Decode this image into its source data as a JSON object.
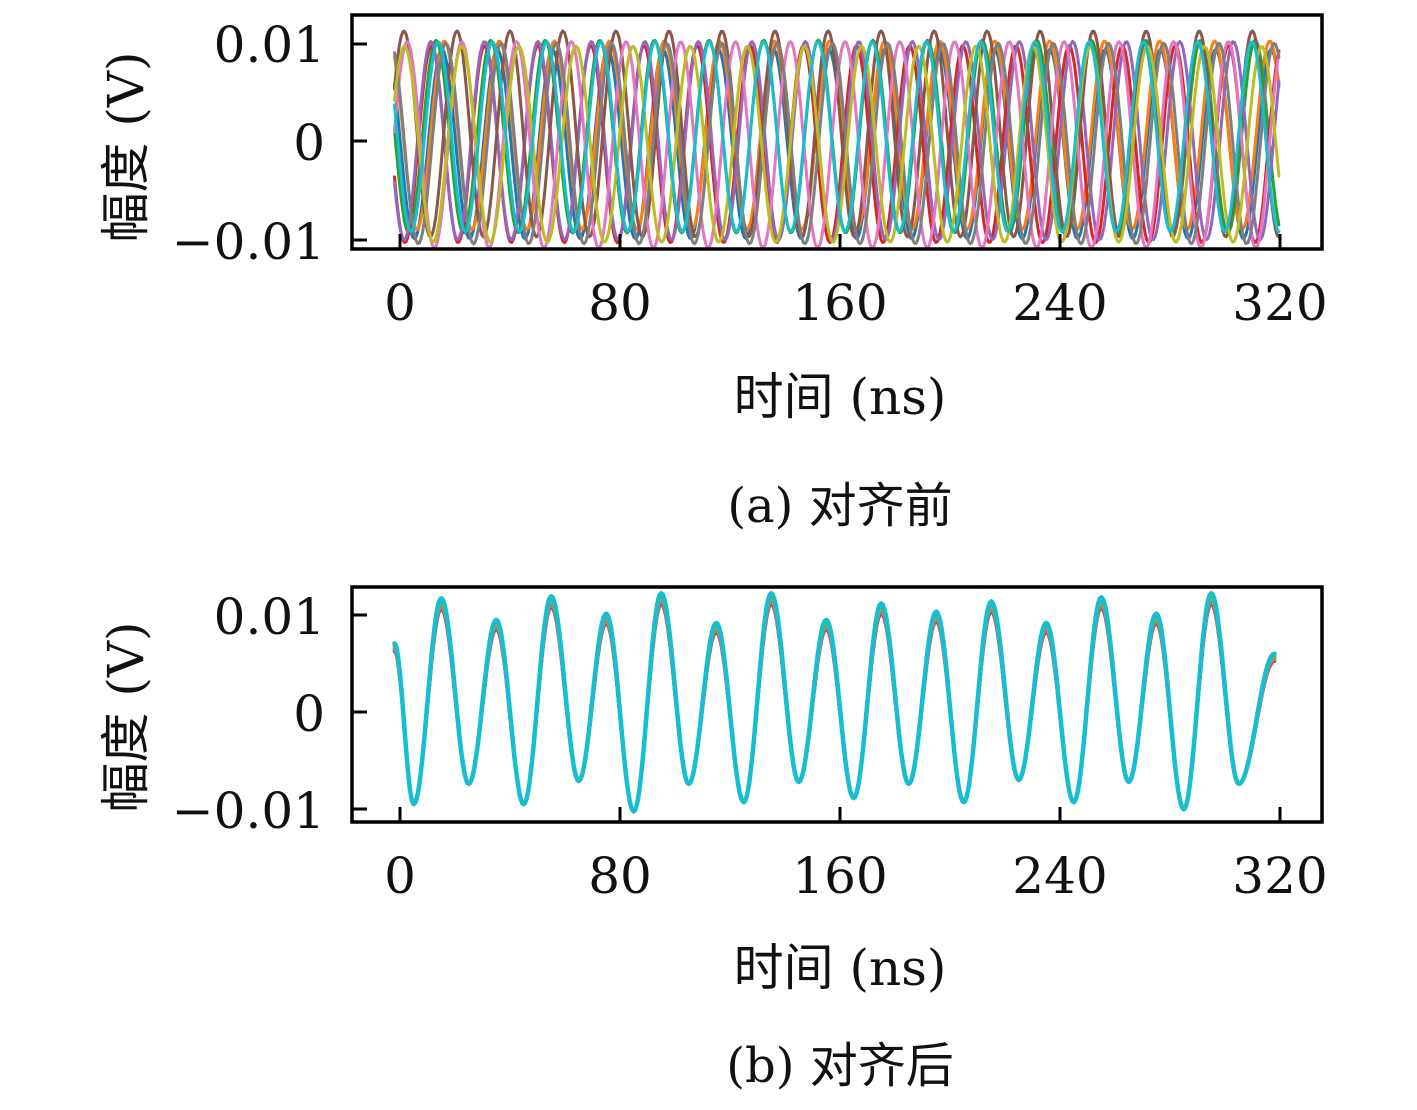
{
  "chart_data": [
    {
      "type": "line",
      "caption": "(a) 对齐前",
      "xlabel": "时间 (ns)",
      "ylabel": "幅度 (V)",
      "xlim": [
        -16,
        336
      ],
      "ylim": [
        -0.011,
        0.0125
      ],
      "xticks": [
        0,
        80,
        160,
        240,
        320
      ],
      "xtick_labels": [
        "0",
        "80",
        "160",
        "240",
        "320"
      ],
      "yticks": [
        -0.01,
        0,
        0.01
      ],
      "ytick_labels": [
        "−0.01",
        "0",
        "0.01"
      ],
      "x": [
        0,
        320
      ],
      "description": "many overlapping unaligned oscillating traces, amplitude about ±0.01 V",
      "series_count": 10,
      "period_ns": 20,
      "amplitude_v": 0.0102,
      "colors": [
        "#1f77b4",
        "#ff7f0e",
        "#2ca02c",
        "#d62728",
        "#9467bd",
        "#8c564b",
        "#e377c2",
        "#7f7f7f",
        "#bcbd22",
        "#17becf"
      ],
      "grid": false
    },
    {
      "type": "line",
      "caption": "(b) 对齐后",
      "xlabel": "时间 (ns)",
      "ylabel": "幅度 (V)",
      "xlim": [
        -16,
        336
      ],
      "ylim": [
        -0.011,
        0.0125
      ],
      "xticks": [
        0,
        80,
        160,
        240,
        320
      ],
      "xtick_labels": [
        "0",
        "80",
        "160",
        "240",
        "320"
      ],
      "yticks": [
        -0.01,
        0,
        0.01
      ],
      "ytick_labels": [
        "−0.01",
        "0",
        "0.01"
      ],
      "x": [
        0,
        320
      ],
      "description": "aligned traces overlapping into a single waveform",
      "series_count": 10,
      "period_ns": 20,
      "peaks": [
        {
          "x": 15,
          "y": 0.0109
        },
        {
          "x": 35,
          "y": 0.0088
        },
        {
          "x": 55,
          "y": 0.0111
        },
        {
          "x": 75,
          "y": 0.0094
        },
        {
          "x": 95,
          "y": 0.0114
        },
        {
          "x": 115,
          "y": 0.0085
        },
        {
          "x": 135,
          "y": 0.0114
        },
        {
          "x": 155,
          "y": 0.0088
        },
        {
          "x": 175,
          "y": 0.0104
        },
        {
          "x": 195,
          "y": 0.0096
        },
        {
          "x": 215,
          "y": 0.0106
        },
        {
          "x": 235,
          "y": 0.0085
        },
        {
          "x": 255,
          "y": 0.011
        },
        {
          "x": 275,
          "y": 0.0094
        },
        {
          "x": 295,
          "y": 0.0114
        }
      ],
      "troughs": [
        {
          "x": 5,
          "y": -0.0092
        },
        {
          "x": 25,
          "y": -0.0072
        },
        {
          "x": 45,
          "y": -0.0092
        },
        {
          "x": 65,
          "y": -0.0069
        },
        {
          "x": 85,
          "y": -0.0099
        },
        {
          "x": 105,
          "y": -0.0072
        },
        {
          "x": 125,
          "y": -0.009
        },
        {
          "x": 145,
          "y": -0.007
        },
        {
          "x": 165,
          "y": -0.0086
        },
        {
          "x": 185,
          "y": -0.0072
        },
        {
          "x": 205,
          "y": -0.009
        },
        {
          "x": 225,
          "y": -0.0068
        },
        {
          "x": 245,
          "y": -0.009
        },
        {
          "x": 265,
          "y": -0.007
        },
        {
          "x": 285,
          "y": -0.0097
        },
        {
          "x": 305,
          "y": -0.0072
        }
      ],
      "start": {
        "x": -2,
        "y": 0.0065
      },
      "end": {
        "x": 318,
        "y": 0.0055
      },
      "colors": [
        "#d62728",
        "#8c564b",
        "#9467bd",
        "#e377c2",
        "#2ca02c",
        "#ff7f0e",
        "#bcbd22",
        "#7f7f7f",
        "#1f77b4",
        "#17becf"
      ],
      "grid": false
    }
  ]
}
